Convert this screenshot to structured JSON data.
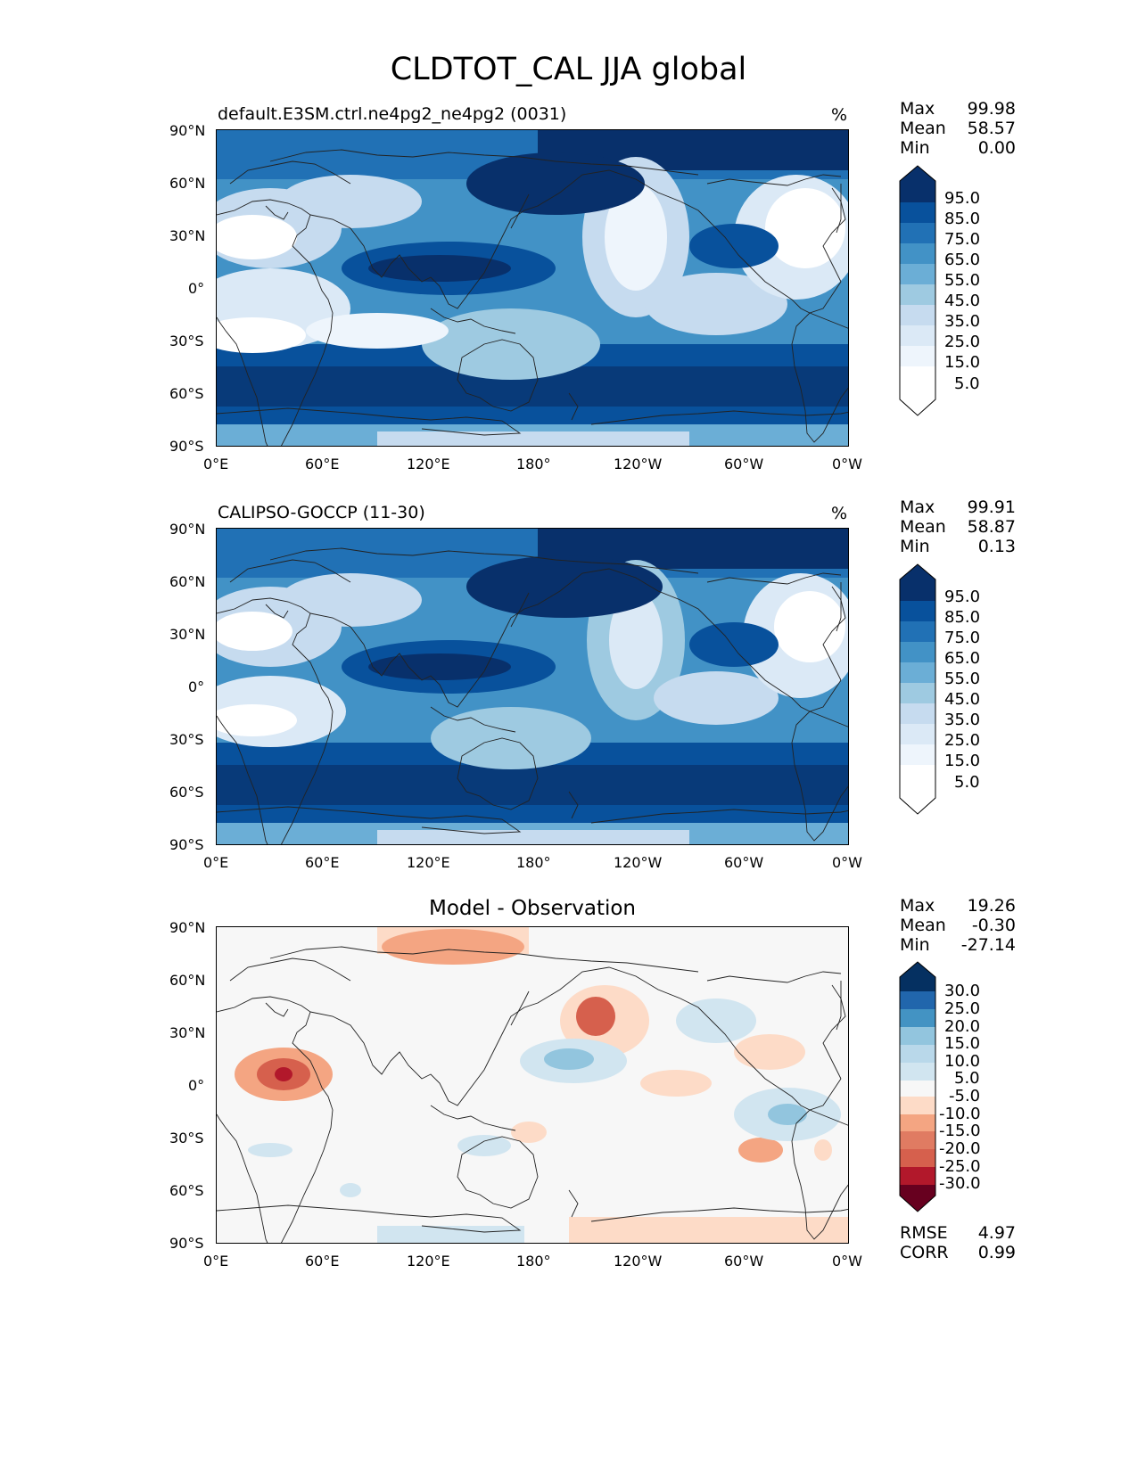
{
  "title": "CLDTOT_CAL JJA global",
  "axes": {
    "lat_ticks": [
      "90°N",
      "60°N",
      "30°N",
      "0°",
      "30°S",
      "60°S",
      "90°S"
    ],
    "lon_ticks": [
      "0°E",
      "60°E",
      "120°E",
      "180°",
      "120°W",
      "60°W",
      "0°W"
    ]
  },
  "panels": [
    {
      "id": "test",
      "title": "default.E3SM.ctrl.ne4pg2_ne4pg2 (0031)",
      "units": "%",
      "stats": [
        {
          "label": "Max",
          "value": "99.98"
        },
        {
          "label": "Mean",
          "value": "58.57"
        },
        {
          "label": "Min",
          "value": "0.00"
        }
      ]
    },
    {
      "id": "reference",
      "title": "CALIPSO-GOCCP (11-30)",
      "units": "%",
      "stats": [
        {
          "label": "Max",
          "value": "99.91"
        },
        {
          "label": "Mean",
          "value": "58.87"
        },
        {
          "label": "Min",
          "value": "0.13"
        }
      ]
    },
    {
      "id": "difference",
      "title": "Model - Observation",
      "units": "",
      "stats": [
        {
          "label": "Max",
          "value": "19.26"
        },
        {
          "label": "Mean",
          "value": "-0.30"
        },
        {
          "label": "Min",
          "value": "-27.14"
        }
      ],
      "metrics": [
        {
          "label": "RMSE",
          "value": "4.97"
        },
        {
          "label": "CORR",
          "value": "0.99"
        }
      ]
    }
  ],
  "colorbars": {
    "sequential": {
      "levels": [
        "95.0",
        "85.0",
        "75.0",
        "65.0",
        "55.0",
        "45.0",
        "35.0",
        "25.0",
        "15.0",
        "5.0"
      ],
      "colors": [
        "#08306b",
        "#08519c",
        "#2171b5",
        "#4292c6",
        "#6baed6",
        "#9ecae1",
        "#c6dbef",
        "#dbe9f6",
        "#eef5fc",
        "#ffffff"
      ]
    },
    "diverging": {
      "levels": [
        "30.0",
        "25.0",
        "20.0",
        "15.0",
        "10.0",
        "5.0",
        "-5.0",
        "-10.0",
        "-15.0",
        "-20.0",
        "-25.0",
        "-30.0"
      ],
      "colors": [
        "#053061",
        "#2166ac",
        "#4393c3",
        "#92c5de",
        "#d1e5f0",
        "#f7f7f7",
        "#fddbc7",
        "#f4a582",
        "#d6604d",
        "#b2182b",
        "#67001f"
      ]
    }
  }
}
